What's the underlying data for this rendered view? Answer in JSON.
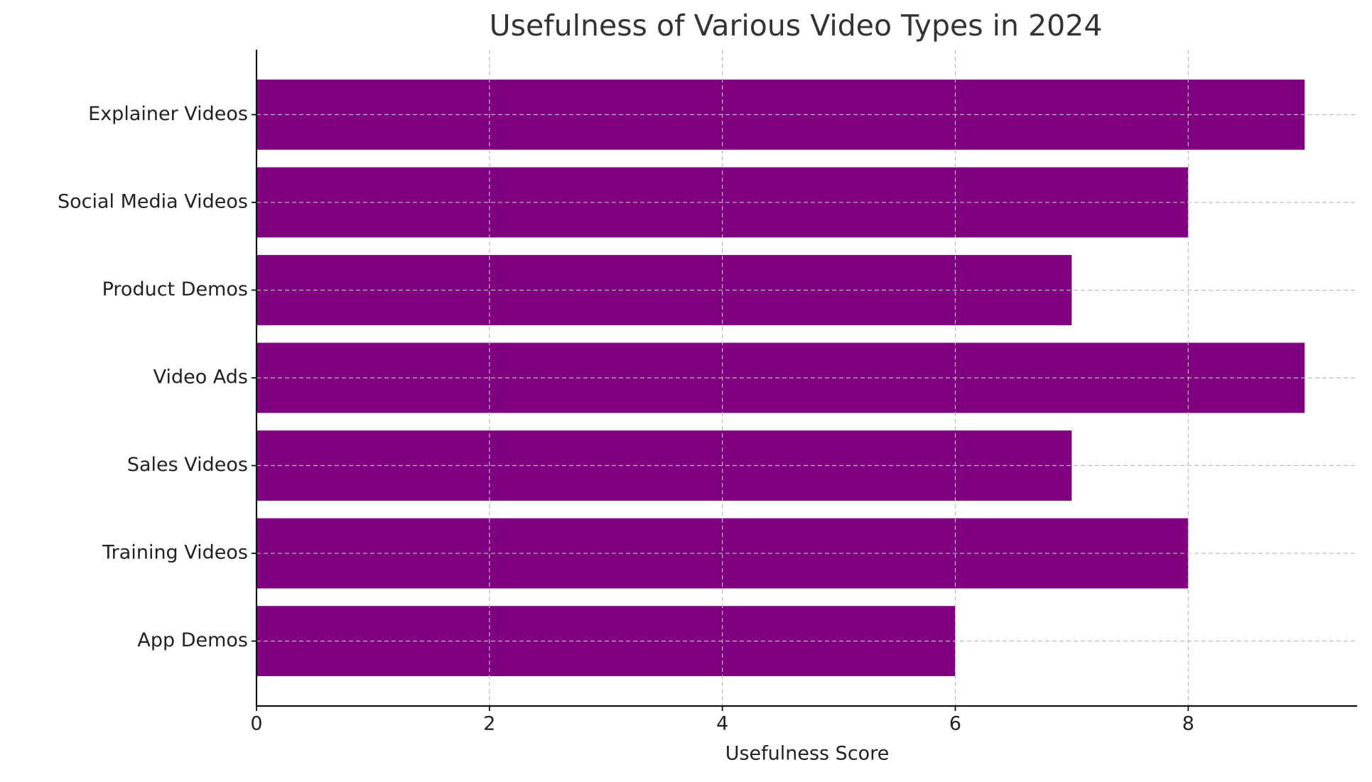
{
  "chart_data": {
    "type": "barh",
    "title": "Usefulness of Various Video Types in 2024",
    "xlabel": "Usefulness Score",
    "categories": [
      "Explainer Videos",
      "Social Media Videos",
      "Product Demos",
      "Video Ads",
      "Sales Videos",
      "Training Videos",
      "App Demos"
    ],
    "values": [
      9,
      8,
      7,
      9,
      7,
      8,
      6
    ],
    "color": "#800080",
    "xlim": [
      0,
      9.45
    ],
    "xticks": [
      0,
      2,
      4,
      6,
      8
    ],
    "grid": true
  }
}
